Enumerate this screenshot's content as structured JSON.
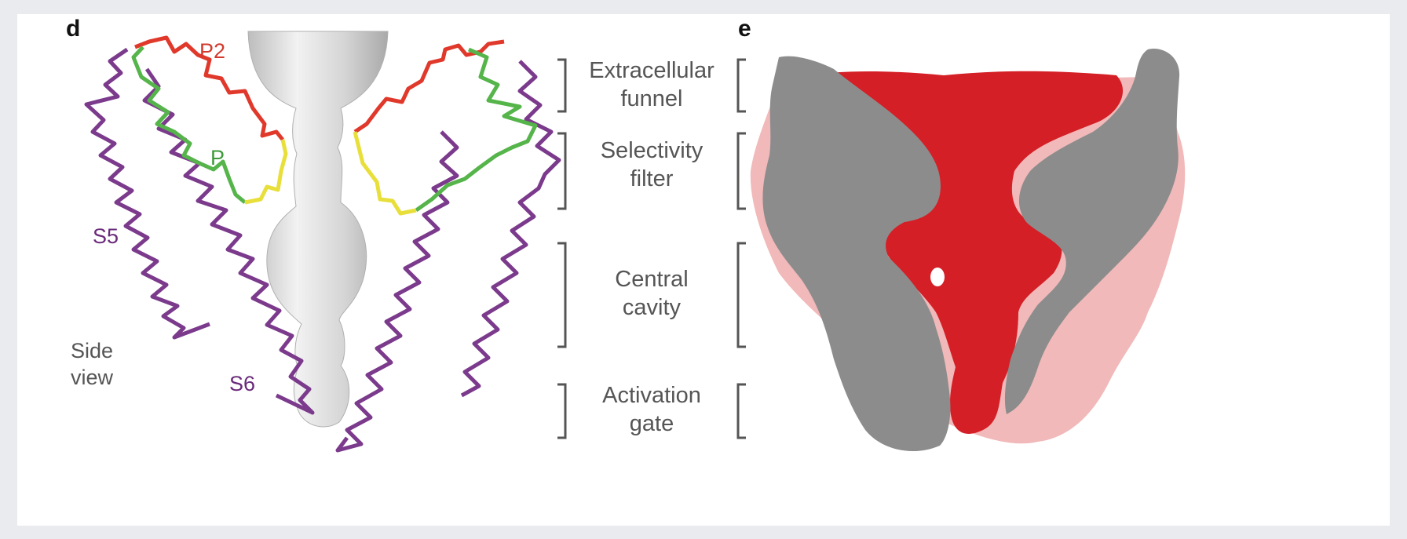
{
  "panel_d": {
    "letter": "d",
    "labels": {
      "p2": "P2",
      "p": "P",
      "s5": "S5",
      "s6": "S6"
    },
    "side_view": [
      "Side",
      "view"
    ],
    "colors": {
      "p2": "#d33a2c",
      "p": "#3d9a3a",
      "s5": "#6a2a7a",
      "s6": "#6a2a7a"
    }
  },
  "regions": [
    {
      "lines": [
        "Extracellular",
        "funnel"
      ]
    },
    {
      "lines": [
        "Selectivity",
        "filter"
      ]
    },
    {
      "lines": [
        "Central",
        "cavity"
      ]
    },
    {
      "lines": [
        "Activation",
        "gate"
      ]
    }
  ],
  "panel_e": {
    "letter": "e"
  },
  "colors": {
    "helix_purple": "#7b3a8c",
    "p_helix_green": "#55b44a",
    "p2_red": "#e0392b",
    "filter_yellow": "#e8df3a",
    "pore_gray": "#d8d8d8",
    "surface_gray": "#8c8c8c",
    "surface_red": "#d41f26",
    "surface_pink": "#f1b9b9"
  }
}
